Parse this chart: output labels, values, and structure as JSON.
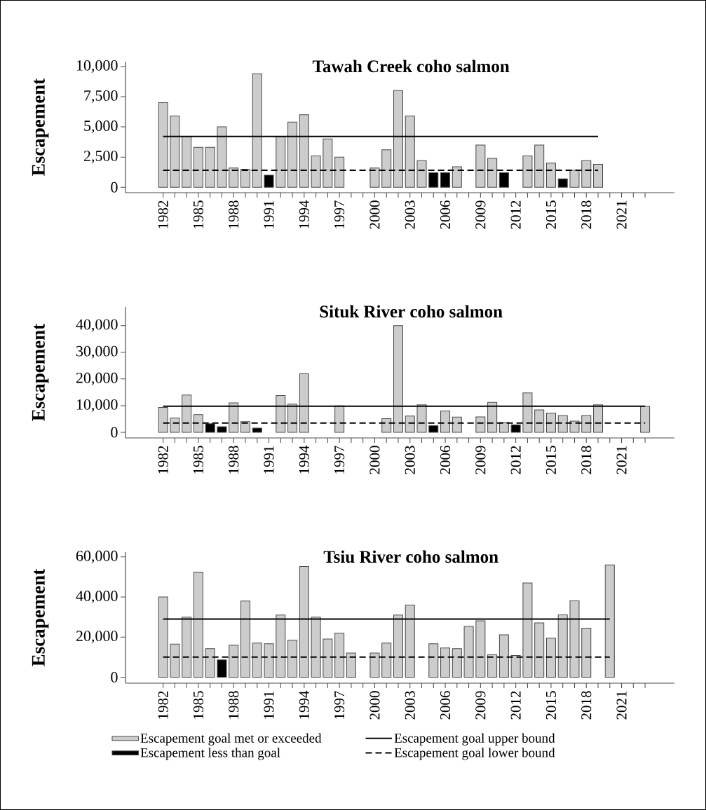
{
  "chart_data": [
    {
      "type": "bar",
      "title": "Tawah Creek coho salmon",
      "ylabel": "Escapement",
      "categories": [
        "1982",
        null,
        null,
        "1985",
        null,
        null,
        "1988",
        null,
        null,
        "1991",
        null,
        null,
        "1994",
        null,
        null,
        "1997",
        null,
        null,
        "2000",
        null,
        null,
        "2003",
        null,
        null,
        "2006",
        null,
        null,
        "2009",
        null,
        null,
        "2012",
        null,
        null,
        "2015",
        null,
        null,
        "2018",
        null,
        null,
        "2021",
        null,
        null
      ],
      "ylim": [
        -450,
        10400
      ],
      "yticks": [
        0,
        {
          "value": 2500,
          "label": "2,500"
        },
        {
          "value": 5000,
          "label": "5,000"
        },
        {
          "value": 7500,
          "label": "7,500"
        },
        {
          "value": 10000,
          "label": "10,000"
        }
      ],
      "series": [
        {
          "color": "#cccccc",
          "values": [
            7000,
            5900,
            4200,
            3300,
            3300,
            5000,
            1600,
            1500,
            9400,
            null,
            4200,
            5400,
            6000,
            2600,
            4000,
            2500,
            null,
            null,
            1600,
            3100,
            8000,
            5900,
            2200,
            null,
            null,
            1700,
            null,
            3500,
            2400,
            null,
            null,
            2600,
            3500,
            2000,
            null,
            1400,
            2200,
            1900,
            null,
            null,
            null,
            null
          ]
        },
        {
          "color": "#000000",
          "values": [
            null,
            null,
            null,
            null,
            null,
            null,
            null,
            null,
            null,
            1000,
            null,
            null,
            null,
            null,
            null,
            null,
            null,
            null,
            null,
            null,
            null,
            null,
            null,
            1200,
            1200,
            null,
            null,
            null,
            null,
            1200,
            null,
            null,
            null,
            null,
            700,
            null,
            null,
            null,
            null,
            null,
            null,
            null
          ]
        },
        {
          "type": "line",
          "color": "#000000",
          "line_style": "solid",
          "values": [
            4200,
            4200,
            4200,
            4200,
            4200,
            4200,
            4200,
            4200,
            4200,
            4200,
            4200,
            4200,
            4200,
            4200,
            4200,
            4200,
            4200,
            4200,
            4200,
            4200,
            4200,
            4200,
            4200,
            4200,
            4200,
            4200,
            4200,
            4200,
            4200,
            4200,
            4200,
            4200,
            4200,
            4200,
            4200,
            4200,
            4200,
            4200,
            null,
            null,
            null,
            null
          ]
        },
        {
          "type": "line",
          "color": "#000000",
          "line_style": "dashed",
          "values": [
            1400,
            1400,
            1400,
            1400,
            1400,
            1400,
            1400,
            1400,
            1400,
            1400,
            1400,
            1400,
            1400,
            1400,
            1400,
            1400,
            1400,
            1400,
            1400,
            1400,
            1400,
            1400,
            1400,
            1400,
            1400,
            1400,
            1400,
            1400,
            1400,
            1400,
            1400,
            1400,
            1400,
            1400,
            1400,
            1400,
            1400,
            1400,
            null,
            null,
            null,
            null
          ]
        }
      ]
    },
    {
      "type": "bar",
      "title": "Situk River coho salmon",
      "ylabel": "Escapement",
      "categories": [
        "1982",
        null,
        null,
        "1985",
        null,
        null,
        "1988",
        null,
        null,
        "1991",
        null,
        null,
        "1994",
        null,
        null,
        "1997",
        null,
        null,
        "2000",
        null,
        null,
        "2003",
        null,
        null,
        "2006",
        null,
        null,
        "2009",
        null,
        null,
        "2012",
        null,
        null,
        "2015",
        null,
        null,
        "2018",
        null,
        null,
        "2021",
        null,
        null
      ],
      "ylim": [
        -2100,
        47000
      ],
      "yticks": [
        0,
        {
          "value": 10000,
          "label": "10,000"
        },
        {
          "value": 20000,
          "label": "20,000"
        },
        {
          "value": 30000,
          "label": "30,000"
        },
        {
          "value": 40000,
          "label": "40,000"
        }
      ],
      "series": [
        {
          "color": "#cccccc",
          "values": [
            9300,
            5400,
            14000,
            6600,
            null,
            null,
            11000,
            4000,
            null,
            null,
            13800,
            10600,
            22000,
            null,
            null,
            9900,
            null,
            null,
            null,
            5100,
            40000,
            6100,
            10300,
            null,
            8000,
            5700,
            null,
            5800,
            11200,
            3700,
            null,
            14800,
            8400,
            7200,
            6300,
            4200,
            6300,
            10300,
            null,
            null,
            null,
            9800
          ]
        },
        {
          "color": "#000000",
          "values": [
            null,
            null,
            null,
            null,
            3200,
            2100,
            null,
            null,
            1600,
            null,
            null,
            null,
            null,
            null,
            null,
            null,
            null,
            null,
            null,
            null,
            null,
            null,
            null,
            2500,
            null,
            null,
            null,
            null,
            null,
            null,
            2800,
            null,
            null,
            null,
            null,
            null,
            null,
            null,
            null,
            null,
            null,
            null
          ]
        },
        {
          "type": "line",
          "color": "#000000",
          "line_style": "solid",
          "values": [
            9800,
            9800,
            9800,
            9800,
            9800,
            9800,
            9800,
            9800,
            9800,
            9800,
            9800,
            9800,
            9800,
            9800,
            9800,
            9800,
            9800,
            9800,
            9800,
            9800,
            9800,
            9800,
            9800,
            9800,
            9800,
            9800,
            9800,
            9800,
            9800,
            9800,
            9800,
            9800,
            9800,
            9800,
            9800,
            9800,
            9800,
            9800,
            9800,
            9800,
            9800,
            9800
          ]
        },
        {
          "type": "line",
          "color": "#000000",
          "line_style": "dashed",
          "values": [
            3500,
            3500,
            3500,
            3500,
            3500,
            3500,
            3500,
            3500,
            3500,
            3500,
            3500,
            3500,
            3500,
            3500,
            3500,
            3500,
            3500,
            3500,
            3500,
            3500,
            3500,
            3500,
            3500,
            3500,
            3500,
            3500,
            3500,
            3500,
            3500,
            3500,
            3500,
            3500,
            3500,
            3500,
            3500,
            3500,
            3500,
            3500,
            3500,
            3500,
            3500,
            3500
          ]
        }
      ]
    },
    {
      "type": "bar",
      "title": "Tsiu River coho salmon",
      "ylabel": "Escapement",
      "legend": "bottom",
      "categories": [
        "1982",
        null,
        null,
        "1985",
        null,
        null,
        "1988",
        null,
        null,
        "1991",
        null,
        null,
        "1994",
        null,
        null,
        "1997",
        null,
        null,
        "2000",
        null,
        null,
        "2003",
        null,
        null,
        "2006",
        null,
        null,
        "2009",
        null,
        null,
        "2012",
        null,
        null,
        "2015",
        null,
        null,
        "2018",
        null,
        null,
        "2021",
        null,
        null
      ],
      "ylim": [
        -3000,
        62400
      ],
      "yticks": [
        0,
        {
          "value": 20000,
          "label": "20,000"
        },
        {
          "value": 40000,
          "label": "40,000"
        },
        {
          "value": 60000,
          "label": "60,000"
        }
      ],
      "series": [
        {
          "name": "Escapement goal met or exceeded",
          "color": "#cccccc",
          "values": [
            40000,
            16500,
            30000,
            52400,
            14200,
            null,
            16000,
            38000,
            17000,
            16700,
            31000,
            18500,
            55200,
            30000,
            19000,
            22000,
            12000,
            null,
            12000,
            17000,
            31000,
            36000,
            null,
            16700,
            14600,
            14200,
            25300,
            28100,
            11200,
            21100,
            10800,
            47000,
            27100,
            19500,
            31100,
            38100,
            24500,
            null,
            56000,
            null,
            null,
            null
          ]
        },
        {
          "name": "Escapement less than goal",
          "color": "#000000",
          "values": [
            null,
            null,
            null,
            null,
            null,
            8600,
            null,
            null,
            null,
            null,
            null,
            null,
            null,
            null,
            null,
            null,
            null,
            null,
            null,
            null,
            null,
            null,
            null,
            null,
            null,
            null,
            null,
            null,
            null,
            null,
            null,
            null,
            null,
            null,
            null,
            null,
            null,
            null,
            null,
            null,
            null,
            null
          ]
        },
        {
          "type": "line",
          "name": "Escapement goal upper bound",
          "color": "#000000",
          "line_style": "solid",
          "values": [
            29000,
            29000,
            29000,
            29000,
            29000,
            29000,
            29000,
            29000,
            29000,
            29000,
            29000,
            29000,
            29000,
            29000,
            29000,
            29000,
            29000,
            29000,
            29000,
            29000,
            29000,
            29000,
            29000,
            29000,
            29000,
            29000,
            29000,
            29000,
            29000,
            29000,
            29000,
            29000,
            29000,
            29000,
            29000,
            29000,
            29000,
            29000,
            29000,
            null,
            null,
            null
          ]
        },
        {
          "type": "line",
          "name": "Escapement goal lower bound",
          "color": "#000000",
          "line_style": "dashed",
          "values": [
            10000,
            10000,
            10000,
            10000,
            10000,
            10000,
            10000,
            10000,
            10000,
            10000,
            10000,
            10000,
            10000,
            10000,
            10000,
            10000,
            10000,
            10000,
            10000,
            10000,
            10000,
            10000,
            10000,
            10000,
            10000,
            10000,
            10000,
            10000,
            10000,
            10000,
            10000,
            10000,
            10000,
            10000,
            10000,
            10000,
            10000,
            10000,
            10000,
            null,
            null,
            null
          ]
        }
      ]
    }
  ]
}
